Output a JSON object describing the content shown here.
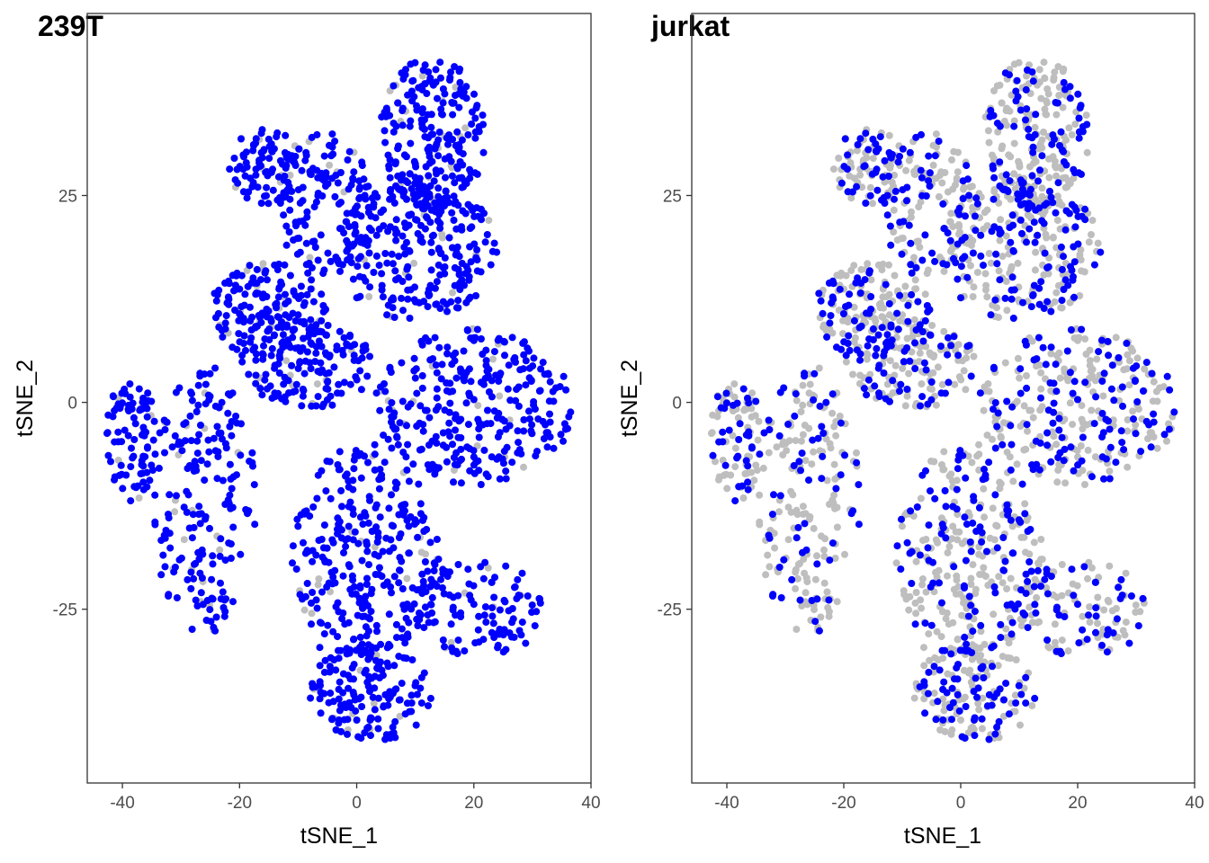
{
  "figure": {
    "background": "#ffffff"
  },
  "chart_data": [
    {
      "type": "scatter",
      "title": "239T",
      "xlabel": "tSNE_1",
      "ylabel": "tSNE_2",
      "xlim": [
        -46,
        40
      ],
      "ylim": [
        -46,
        47
      ],
      "x_ticks": [
        -40,
        -20,
        0,
        20,
        40
      ],
      "x_tick_labels": [
        "-40",
        "-20",
        "0",
        "20",
        "40"
      ],
      "y_ticks": [
        -25,
        0,
        25
      ],
      "y_tick_labels": [
        "-25",
        "0",
        "25"
      ],
      "grid": false,
      "legend": "none",
      "background_color": "#bebebe",
      "highlight_color": "#0000ff",
      "highlight_density": 0.93,
      "clusters": [
        {
          "name": "top",
          "x": [
            4,
            22
          ],
          "y": [
            23,
            42
          ],
          "n": 240
        },
        {
          "name": "upper-left",
          "x": [
            -22,
            -9
          ],
          "y": [
            24,
            33
          ],
          "n": 90
        },
        {
          "name": "upper-middle",
          "x": [
            -14,
            3
          ],
          "y": [
            15,
            33
          ],
          "n": 130
        },
        {
          "name": "center",
          "x": [
            -4,
            24
          ],
          "y": [
            10,
            27
          ],
          "n": 260
        },
        {
          "name": "left-middle",
          "x": [
            -25,
            -5
          ],
          "y": [
            5,
            17
          ],
          "n": 170
        },
        {
          "name": "center-low",
          "x": [
            -20,
            3
          ],
          "y": [
            -1,
            10
          ],
          "n": 140
        },
        {
          "name": "right",
          "x": [
            3,
            37
          ],
          "y": [
            -10,
            9
          ],
          "n": 300
        },
        {
          "name": "far-left",
          "x": [
            -43,
            -34
          ],
          "y": [
            -12,
            3
          ],
          "n": 90
        },
        {
          "name": "left-arm",
          "x": [
            -35,
            -17
          ],
          "y": [
            -28,
            5
          ],
          "n": 200
        },
        {
          "name": "bottom-main",
          "x": [
            -11,
            14
          ],
          "y": [
            -33,
            -5
          ],
          "n": 310
        },
        {
          "name": "bottom-arm",
          "x": [
            10,
            32
          ],
          "y": [
            -31,
            -19
          ],
          "n": 110
        },
        {
          "name": "bottom-lobe",
          "x": [
            -8,
            13
          ],
          "y": [
            -41,
            -29
          ],
          "n": 150
        }
      ]
    },
    {
      "type": "scatter",
      "title": "jurkat",
      "xlabel": "tSNE_1",
      "ylabel": "tSNE_2",
      "xlim": [
        -46,
        40
      ],
      "ylim": [
        -46,
        47
      ],
      "x_ticks": [
        -40,
        -20,
        0,
        20,
        40
      ],
      "x_tick_labels": [
        "-40",
        "-20",
        "0",
        "20",
        "40"
      ],
      "y_ticks": [
        -25,
        0,
        25
      ],
      "y_tick_labels": [
        "-25",
        "0",
        "25"
      ],
      "grid": false,
      "legend": "none",
      "background_color": "#bebebe",
      "highlight_color": "#0000ff",
      "highlight_density": 0.4,
      "clusters": [
        {
          "name": "top",
          "x": [
            4,
            22
          ],
          "y": [
            23,
            42
          ],
          "n": 240
        },
        {
          "name": "upper-left",
          "x": [
            -22,
            -9
          ],
          "y": [
            24,
            33
          ],
          "n": 90
        },
        {
          "name": "upper-middle",
          "x": [
            -14,
            3
          ],
          "y": [
            15,
            33
          ],
          "n": 130
        },
        {
          "name": "center",
          "x": [
            -4,
            24
          ],
          "y": [
            10,
            27
          ],
          "n": 260
        },
        {
          "name": "left-middle",
          "x": [
            -25,
            -5
          ],
          "y": [
            5,
            17
          ],
          "n": 170
        },
        {
          "name": "center-low",
          "x": [
            -20,
            3
          ],
          "y": [
            -1,
            10
          ],
          "n": 140
        },
        {
          "name": "right",
          "x": [
            3,
            37
          ],
          "y": [
            -10,
            9
          ],
          "n": 300
        },
        {
          "name": "far-left",
          "x": [
            -43,
            -34
          ],
          "y": [
            -12,
            3
          ],
          "n": 90
        },
        {
          "name": "left-arm",
          "x": [
            -35,
            -17
          ],
          "y": [
            -28,
            5
          ],
          "n": 200
        },
        {
          "name": "bottom-main",
          "x": [
            -11,
            14
          ],
          "y": [
            -33,
            -5
          ],
          "n": 310
        },
        {
          "name": "bottom-arm",
          "x": [
            10,
            32
          ],
          "y": [
            -31,
            -19
          ],
          "n": 110
        },
        {
          "name": "bottom-lobe",
          "x": [
            -8,
            13
          ],
          "y": [
            -41,
            -29
          ],
          "n": 150
        }
      ]
    }
  ]
}
